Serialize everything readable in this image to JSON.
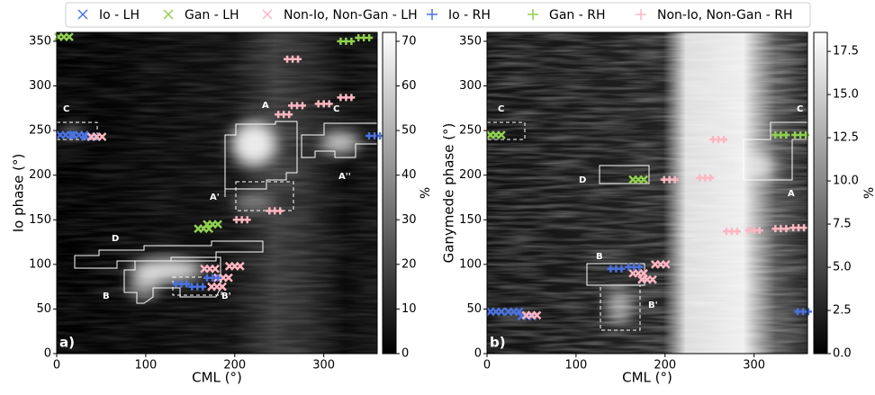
{
  "legend_loc": "upper center",
  "chart_data": [
    {
      "type": "scatter",
      "panel_label": "a)",
      "xlabel": "CML (°)",
      "ylabel": "Io phase (°)",
      "xlim": [
        0,
        360
      ],
      "ylim": [
        0,
        360
      ],
      "xticks": [
        0,
        100,
        200,
        300
      ],
      "yticks": [
        0,
        50,
        100,
        150,
        200,
        250,
        300,
        350
      ],
      "colorbar": {
        "label": "%",
        "lim": [
          0,
          72
        ],
        "ticks": [
          0,
          10,
          20,
          30,
          40,
          50,
          60,
          70
        ]
      },
      "annotations": [
        "A",
        "A'",
        "A''",
        "B",
        "B'",
        "C",
        "C",
        "D"
      ],
      "series": [
        {
          "name": "Io - LH",
          "color": "#4a72e0",
          "marker": "x",
          "x": [
            10,
            25,
            38
          ],
          "y": [
            245,
            245,
            243
          ]
        },
        {
          "name": "Gan - LH",
          "color": "#8fd14f",
          "marker": "x",
          "x": [
            8,
            165,
            175
          ],
          "y": [
            355,
            140,
            145
          ]
        },
        {
          "name": "Non-Io, Non-Gan - LH",
          "color": "#ffb6c1",
          "marker": "x",
          "x": [
            45,
            172,
            180,
            187,
            200
          ],
          "y": [
            243,
            95,
            75,
            85,
            98
          ]
        },
        {
          "name": "Io - RH",
          "color": "#4a72e0",
          "marker": "+",
          "x": [
            140,
            158,
            175,
            357
          ],
          "y": [
            78,
            75,
            85,
            244
          ]
        },
        {
          "name": "Gan - RH",
          "color": "#8fd14f",
          "marker": "+",
          "x": [
            325,
            345
          ],
          "y": [
            350,
            354
          ]
        },
        {
          "name": "Non-Io, Non-Gan - RH",
          "color": "#ffb6c1",
          "marker": "+",
          "x": [
            208,
            245,
            265,
            255,
            300,
            325,
            270
          ],
          "y": [
            150,
            160,
            330,
            268,
            280,
            287,
            278
          ]
        }
      ]
    },
    {
      "type": "scatter",
      "panel_label": "b)",
      "xlabel": "CML (°)",
      "ylabel": "Ganymede phase (°)",
      "xlim": [
        0,
        360
      ],
      "ylim": [
        0,
        360
      ],
      "xticks": [
        0,
        100,
        200,
        300
      ],
      "yticks": [
        0,
        50,
        100,
        150,
        200,
        250,
        300,
        350
      ],
      "colorbar": {
        "label": "%",
        "lim": [
          0,
          18.6
        ],
        "ticks": [
          {
            "value": 0,
            "label": "0.0"
          },
          2.5,
          {
            "value": 5,
            "label": "5.0"
          },
          7.5,
          {
            "value": 10,
            "label": "10.0"
          },
          12.5,
          {
            "value": 15,
            "label": "15.0"
          },
          17.5
        ]
      },
      "annotations": [
        "A",
        "B",
        "B'",
        "C",
        "C",
        "D"
      ],
      "series": [
        {
          "color": "#4a72e0",
          "marker": "x",
          "x": [
            10,
            30,
            45
          ],
          "y": [
            47,
            47,
            42
          ]
        },
        {
          "color": "#8fd14f",
          "marker": "x",
          "x": [
            10,
            170
          ],
          "y": [
            245,
            195
          ]
        },
        {
          "color": "#ffb6c1",
          "marker": "x",
          "x": [
            50,
            180,
            195,
            170
          ],
          "y": [
            43,
            83,
            100,
            90
          ]
        },
        {
          "color": "#4a72e0",
          "marker": "+",
          "x": [
            145,
            165,
            355
          ],
          "y": [
            95,
            97,
            47
          ]
        },
        {
          "color": "#8fd14f",
          "marker": "+",
          "x": [
            330,
            352
          ],
          "y": [
            245,
            245
          ]
        },
        {
          "color": "#ffb6c1",
          "marker": "+",
          "x": [
            205,
            245,
            260,
            275,
            300,
            330,
            350
          ],
          "y": [
            195,
            197,
            240,
            137,
            138,
            140,
            141
          ]
        }
      ]
    }
  ]
}
